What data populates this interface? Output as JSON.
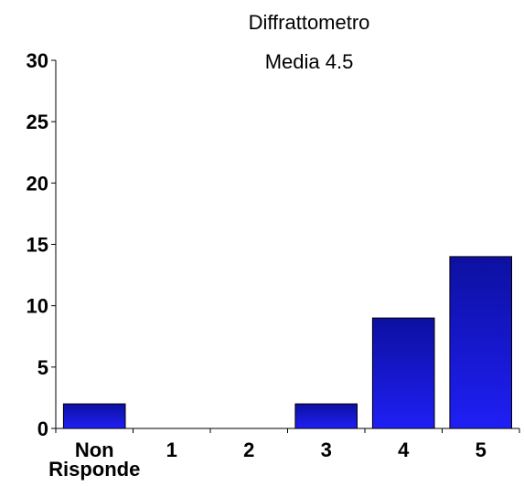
{
  "chart_data": {
    "type": "bar",
    "title": "Diffrattometro",
    "subtitle": "Media 4.5",
    "categories": [
      "Non Risponde",
      "1",
      "2",
      "3",
      "4",
      "5"
    ],
    "category_lines": [
      [
        "Non",
        "Risponde"
      ],
      [
        "1"
      ],
      [
        "2"
      ],
      [
        "3"
      ],
      [
        "4"
      ],
      [
        "5"
      ]
    ],
    "values": [
      2,
      0,
      0,
      2,
      9,
      14
    ],
    "ylim": [
      0,
      30
    ],
    "yticks": [
      0,
      5,
      10,
      15,
      20,
      25,
      30
    ],
    "xlabel": "",
    "ylabel": "",
    "grid": false,
    "colors": {
      "bar_top": "#0d10a0",
      "bar_bottom": "#1f1ff5"
    }
  }
}
